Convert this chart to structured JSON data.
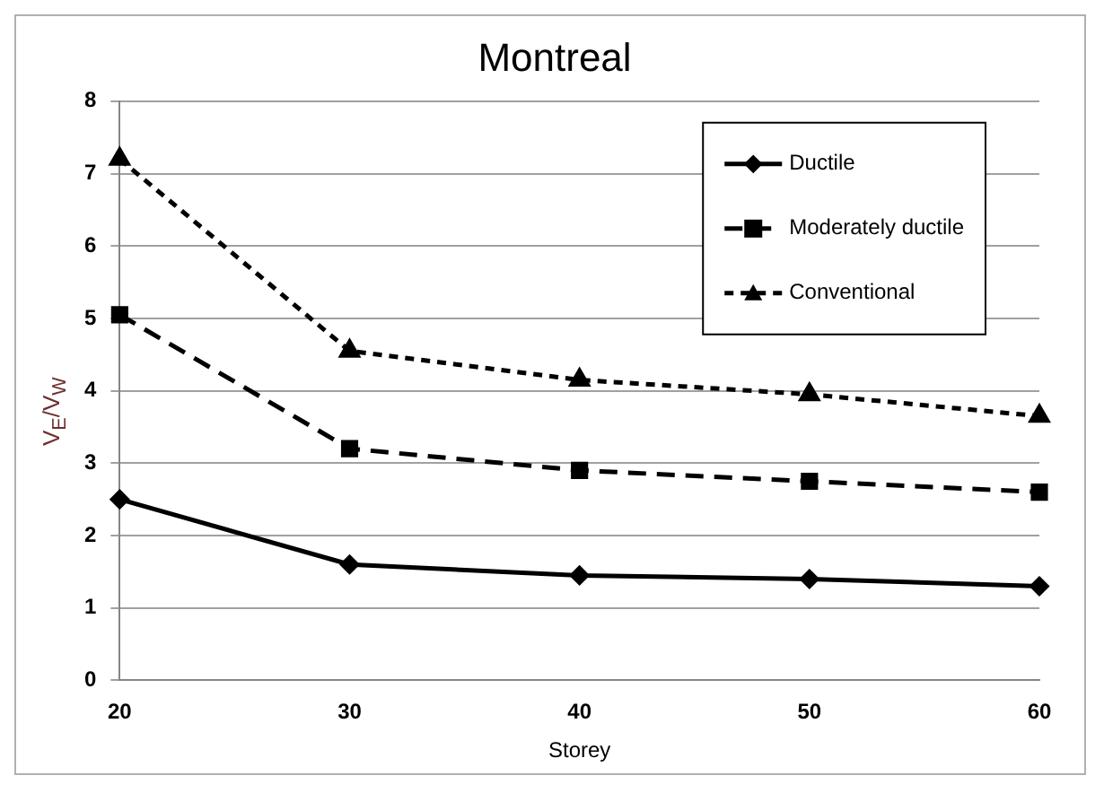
{
  "chart_data": {
    "type": "line",
    "title": "Montreal",
    "xlabel": "Storey",
    "ylabel": "V$_{E}$/V$_{W}$",
    "x": [
      20,
      30,
      40,
      50,
      60
    ],
    "xlim": [
      20,
      60
    ],
    "xticks": [
      20,
      30,
      40,
      50,
      60
    ],
    "ylim": [
      0,
      8
    ],
    "yticks": [
      0,
      1,
      2,
      3,
      4,
      5,
      6,
      7,
      8
    ],
    "grid": "y",
    "legend": "top right",
    "series": [
      {
        "name": "Ductile",
        "color": "#000000",
        "marker": "diamond",
        "line_style": "solid",
        "values": [
          2.5,
          1.6,
          1.45,
          1.4,
          1.3
        ]
      },
      {
        "name": "Moderately ductile",
        "color": "#000000",
        "marker": "square",
        "line_style": "dashed",
        "values": [
          5.05,
          3.2,
          2.9,
          2.75,
          2.6
        ]
      },
      {
        "name": "Conventional",
        "color": "#000000",
        "marker": "triangle",
        "line_style": "dotted",
        "values": [
          7.2,
          4.55,
          4.15,
          3.95,
          3.65
        ]
      }
    ]
  }
}
